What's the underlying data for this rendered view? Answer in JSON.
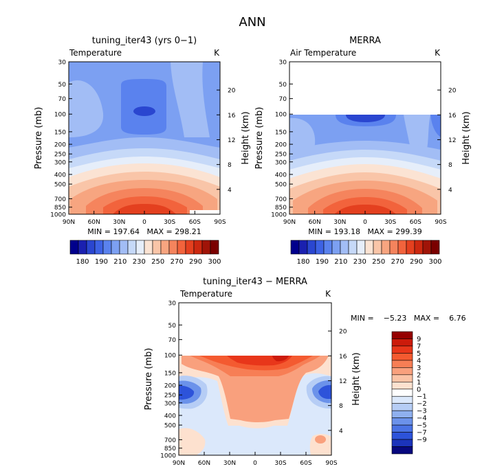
{
  "main_title": "ANN",
  "chart_data": [
    {
      "type": "heatmap",
      "title": "tuning_iter43 (yrs 0−1)",
      "variable": "Temperature",
      "units": "K",
      "ylabel": "Pressure (mb)",
      "y2label": "Height (km)",
      "x_ticks": [
        "90N",
        "60N",
        "30N",
        "0",
        "30S",
        "60S",
        "90S"
      ],
      "y_ticks": [
        "30",
        "50",
        "70",
        "100",
        "150",
        "200",
        "250",
        "300",
        "400",
        "500",
        "700",
        "850",
        "1000"
      ],
      "height_ticks": [
        "20",
        "16",
        "12",
        "8",
        "4"
      ],
      "stats": "MIN = 197.64   MAX = 298.21",
      "data_top_mb": 30,
      "colorbar": {
        "levels": [
          "180",
          "190",
          "210",
          "230",
          "250",
          "270",
          "290",
          "300"
        ],
        "colors": [
          "#00008c",
          "#1a20b0",
          "#2a46d0",
          "#3d62e4",
          "#5a82ee",
          "#7ca0f2",
          "#a2bdf5",
          "#c6d9f8",
          "#e6eefa",
          "#fbe3d3",
          "#f9c5a8",
          "#f7a580",
          "#f5845d",
          "#f2633c",
          "#e4401f",
          "#cc2810",
          "#a01408",
          "#7a0000"
        ]
      }
    },
    {
      "type": "heatmap",
      "title": "MERRA",
      "variable": "Air Temperature",
      "units": "K",
      "ylabel": "Pressure (mb)",
      "y2label": "Height (km)",
      "x_ticks": [
        "90N",
        "60N",
        "30N",
        "0",
        "30S",
        "60S",
        "90S"
      ],
      "y_ticks": [
        "30",
        "50",
        "70",
        "100",
        "150",
        "200",
        "250",
        "300",
        "400",
        "500",
        "700",
        "850",
        "1000"
      ],
      "height_ticks": [
        "20",
        "16",
        "12",
        "8",
        "4"
      ],
      "stats": "MIN = 193.18   MAX = 299.39",
      "data_top_mb": 100,
      "colorbar": {
        "levels": [
          "180",
          "190",
          "210",
          "230",
          "250",
          "270",
          "290",
          "300"
        ],
        "colors": [
          "#00008c",
          "#1a20b0",
          "#2a46d0",
          "#3d62e4",
          "#5a82ee",
          "#7ca0f2",
          "#a2bdf5",
          "#c6d9f8",
          "#e6eefa",
          "#fbe3d3",
          "#f9c5a8",
          "#f7a580",
          "#f5845d",
          "#f2633c",
          "#e4401f",
          "#cc2810",
          "#a01408",
          "#7a0000"
        ]
      }
    },
    {
      "type": "heatmap",
      "title": "tuning_iter43 − MERRA",
      "variable": "Temperature",
      "units": "K",
      "ylabel": "Pressure (mb)",
      "y2label": "Height (km)",
      "x_ticks": [
        "90N",
        "60N",
        "30N",
        "0",
        "30S",
        "60S",
        "90S"
      ],
      "y_ticks": [
        "30",
        "50",
        "70",
        "100",
        "150",
        "200",
        "250",
        "300",
        "400",
        "500",
        "700",
        "850",
        "1000"
      ],
      "height_ticks": [
        "20",
        "16",
        "12",
        "8",
        "4"
      ],
      "stats": "MIN =    −5.23   MAX =    6.76",
      "data_top_mb": 100,
      "colorbar": {
        "levels": [
          "9",
          "7",
          "5",
          "4",
          "3",
          "2",
          "1",
          "0",
          "−1",
          "−2",
          "−3",
          "−4",
          "−5",
          "−7",
          "−9"
        ],
        "colors": [
          "#960000",
          "#cc1b0b",
          "#e8361a",
          "#f45a30",
          "#f77e55",
          "#f9a07d",
          "#fbc3a6",
          "#fde1cf",
          "#ffffff",
          "#dbe8fb",
          "#b6cdf5",
          "#8fb0ef",
          "#6b92ea",
          "#4a73e4",
          "#2d53da",
          "#1b34bb",
          "#07087e"
        ]
      }
    }
  ]
}
